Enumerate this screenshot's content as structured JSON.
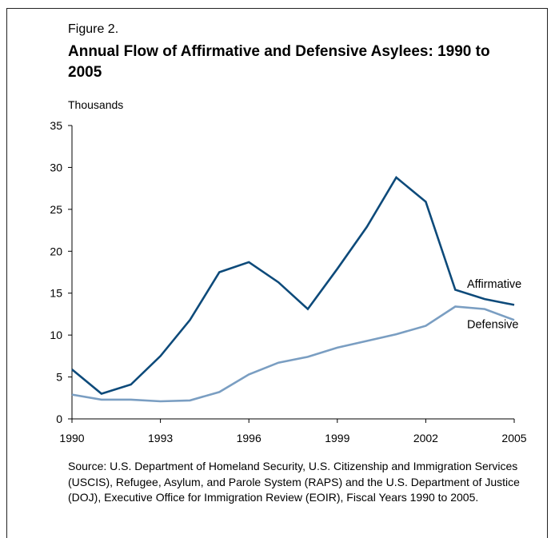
{
  "figure_label": "Figure 2.",
  "title": "Annual Flow of Affirmative and Defensive Asylees: 1990 to 2005",
  "units_label": "Thousands",
  "source": "Source: U.S. Department of Homeland Security, U.S. Citizenship and Immigration Services (USCIS), Refugee, Asylum, and Parole System (RAPS) and the U.S. Department of Justice (DOJ), Executive Office for Immigration Review (EOIR), Fiscal Years 1990 to 2005.",
  "colors": {
    "affirmative": "#0d4a7a",
    "defensive": "#7a9ec2",
    "axis": "#000000"
  },
  "chart_data": {
    "type": "line",
    "xlabel": "",
    "ylabel": "Thousands",
    "x": [
      1990,
      1991,
      1992,
      1993,
      1994,
      1995,
      1996,
      1997,
      1998,
      1999,
      2000,
      2001,
      2002,
      2003,
      2004,
      2005
    ],
    "x_ticks": [
      "1990",
      "1993",
      "1996",
      "1999",
      "2002",
      "2005"
    ],
    "x_tick_values": [
      1990,
      1993,
      1996,
      1999,
      2002,
      2005
    ],
    "y_ticks": [
      "0",
      "5",
      "10",
      "15",
      "20",
      "25",
      "30",
      "35"
    ],
    "y_tick_values": [
      0,
      5,
      10,
      15,
      20,
      25,
      30,
      35
    ],
    "xlim": [
      1990,
      2005
    ],
    "ylim": [
      0,
      35
    ],
    "grid": false,
    "legend": "direct labels at right end of lines",
    "series": [
      {
        "name": "Affirmative",
        "color": "#0d4a7a",
        "values": [
          5.9,
          3.0,
          4.1,
          7.5,
          11.8,
          17.5,
          18.7,
          16.3,
          13.1,
          17.9,
          22.9,
          28.8,
          25.9,
          15.4,
          14.3,
          13.6
        ]
      },
      {
        "name": "Defensive",
        "color": "#7a9ec2",
        "values": [
          2.9,
          2.3,
          2.3,
          2.1,
          2.2,
          3.2,
          5.3,
          6.7,
          7.4,
          8.5,
          9.3,
          10.1,
          11.1,
          13.4,
          13.1,
          11.8
        ]
      }
    ]
  }
}
